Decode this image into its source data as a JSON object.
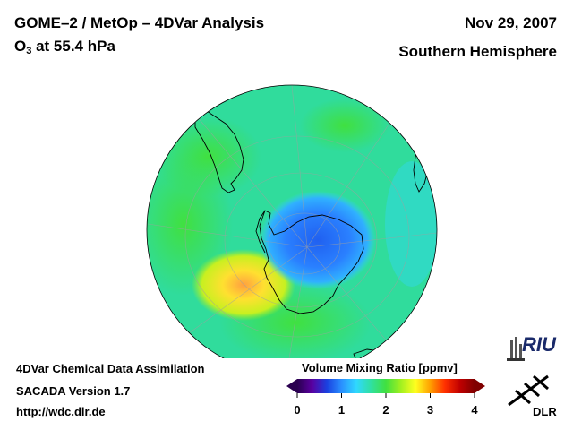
{
  "header": {
    "title_line1": "GOME–2 / MetOp – 4DVar Analysis",
    "title_line2_prefix": "O",
    "title_line2_sub": "3",
    "title_line2_suffix": " at 55.4 hPa",
    "date": "Nov 29, 2007",
    "region": "Southern Hemisphere"
  },
  "footer": {
    "line1": "4DVar Chemical Data Assimilation",
    "line2": "SACADA Version 1.7",
    "line3": "http://wdc.dlr.de"
  },
  "colorbar": {
    "title": "Volume Mixing Ratio [ppmv]",
    "ticks": [
      "0",
      "1",
      "2",
      "3",
      "4"
    ],
    "min": 0,
    "max": 4,
    "colors": [
      "#2a0050",
      "#5a00a0",
      "#1a40e0",
      "#2a90ff",
      "#30d8ff",
      "#30e0a0",
      "#40e040",
      "#a0f020",
      "#ffff20",
      "#ffa000",
      "#ff3000",
      "#c00000",
      "#800000"
    ]
  },
  "logos": {
    "riu": "RIU",
    "dlr": "DLR"
  },
  "map": {
    "projection": "orthographic, south polar",
    "ozone_hole_color": "#2a78ff",
    "background_color": "#30e0a0"
  }
}
